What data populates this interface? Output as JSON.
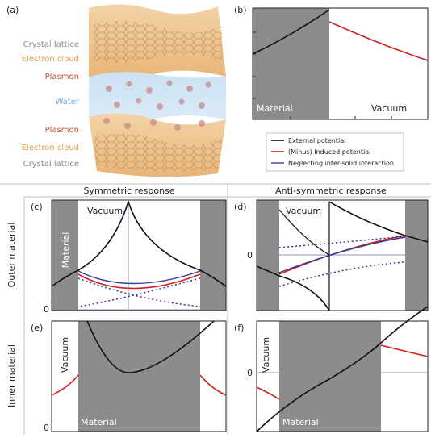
{
  "panel_a": {
    "label": "(a)",
    "layers": [
      "Crystal lattice",
      "Electron cloud",
      "Plasmon",
      "Water",
      "Plasmon",
      "Electron cloud",
      "Crystal lattice"
    ]
  },
  "panel_b": {
    "label": "(b)",
    "left_region": "Material",
    "right_region": "Vacuum"
  },
  "legend": [
    "External potential",
    "(Minus) Induced potential",
    "Neglecting inter-solid interaction"
  ],
  "columns": [
    "Symmetric response",
    "Anti-symmetric response"
  ],
  "rows": [
    "Outer material",
    "Inner material"
  ],
  "panel_c": {
    "label": "(c)",
    "region_1": "Vacuum",
    "region_2": "Material",
    "zero": "0"
  },
  "panel_d": {
    "label": "(d)",
    "region_1": "Vacuum",
    "zero": "0"
  },
  "panel_e": {
    "label": "(e)",
    "region_1": "Vacuum",
    "region_2": "Material",
    "zero": "0"
  },
  "panel_f": {
    "label": "(f)",
    "region_1": "Vacuum",
    "region_2": "Material",
    "zero": "0"
  }
}
